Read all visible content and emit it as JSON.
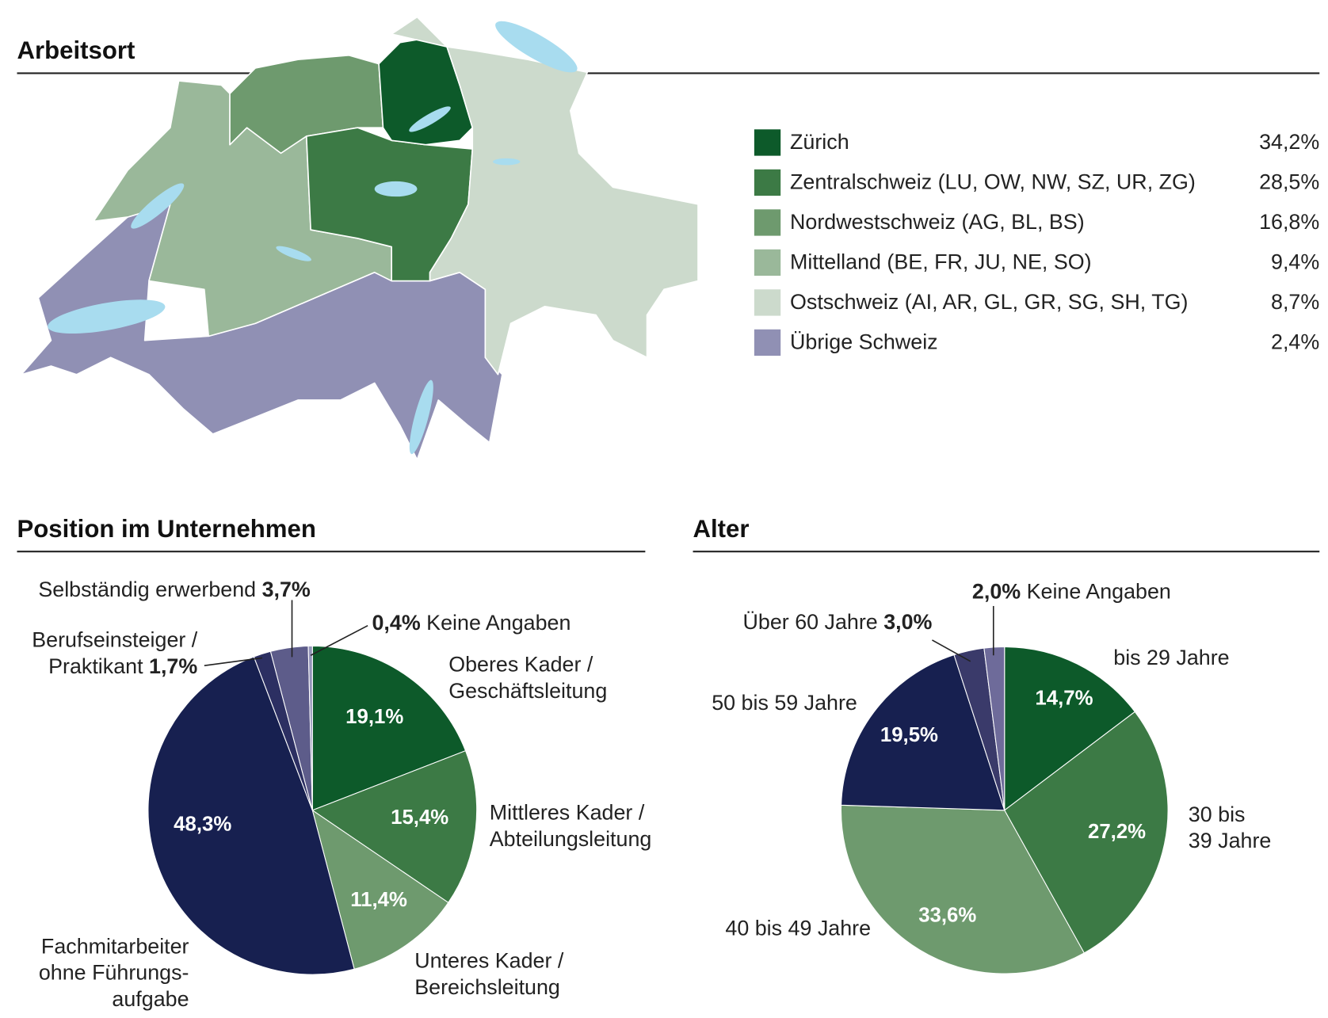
{
  "chart_data": [
    {
      "type": "map",
      "title": "Arbeitsort",
      "categories": [
        "Zürich",
        "Zentralschweiz (LU, OW, NW, SZ, UR, ZG)",
        "Nordwestschweiz (AG, BL, BS)",
        "Mittelland (BE, FR, JU, NE, SO)",
        "Ostschweiz (AI, AR, GL, GR, SG, SH, TG)",
        "Übrige Schweiz"
      ],
      "values": [
        34.2,
        28.5,
        16.8,
        9.4,
        8.7,
        2.4
      ],
      "value_labels": [
        "34,2%",
        "28,5%",
        "16,8%",
        "9,4%",
        "8,7%",
        "2,4%"
      ],
      "colors": [
        "#0d5a2a",
        "#3c7a45",
        "#6e9a6e",
        "#9ab89a",
        "#ccdacc",
        "#9090b4"
      ]
    },
    {
      "type": "pie",
      "title": "Position im Unternehmen",
      "categories": [
        "Oberes Kader /\nGeschäftsleitung",
        "Mittleres Kader /\nAbteilungsleitung",
        "Unteres Kader /\nBereichsleitung",
        "Fachmitarbeiter\nohne Führungs-\naufgabe",
        "Berufseinsteiger /\nPraktikant",
        "Selbständig erwerbend",
        "Keine Angaben"
      ],
      "values": [
        19.1,
        15.4,
        11.4,
        48.3,
        1.7,
        3.7,
        0.4
      ],
      "value_labels": [
        "19,1%",
        "15,4%",
        "11,4%",
        "48,3%",
        "1,7%",
        "3,7%",
        "0,4%"
      ],
      "colors": [
        "#0d5a2a",
        "#3c7a45",
        "#6e9a6e",
        "#172050",
        "#2c2f62",
        "#5d5c8a",
        "#9494b8"
      ]
    },
    {
      "type": "pie",
      "title": "Alter",
      "categories": [
        "bis 29 Jahre",
        "30 bis\n39 Jahre",
        "40 bis 49 Jahre",
        "50 bis 59 Jahre",
        "Über 60 Jahre",
        "Keine Angaben"
      ],
      "values": [
        14.7,
        27.2,
        33.6,
        19.5,
        3.0,
        2.0
      ],
      "value_labels": [
        "14,7%",
        "27,2%",
        "33,6%",
        "19,5%",
        "3,0%",
        "2,0%"
      ],
      "colors": [
        "#0d5a2a",
        "#3c7a45",
        "#6e9a6e",
        "#172050",
        "#3a3a6a",
        "#6e6b9a"
      ]
    }
  ]
}
